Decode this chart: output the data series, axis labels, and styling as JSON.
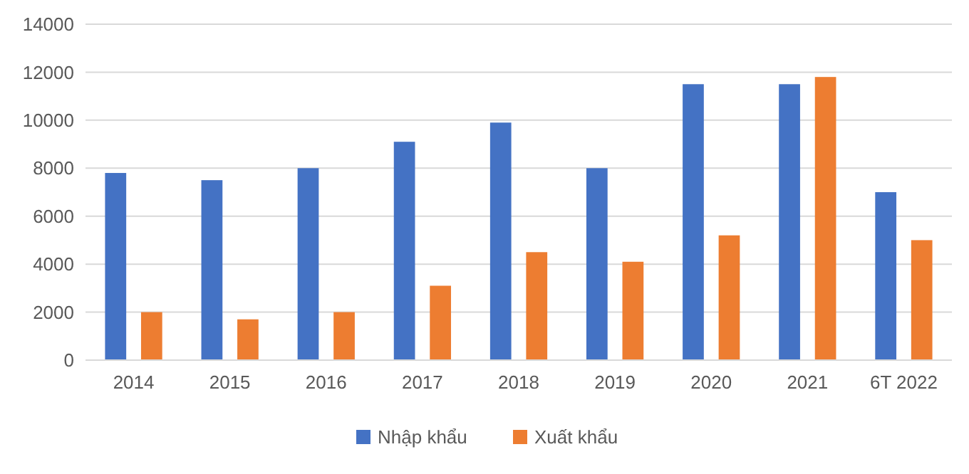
{
  "chart_data": {
    "type": "bar",
    "categories": [
      "2014",
      "2015",
      "2016",
      "2017",
      "2018",
      "2019",
      "2020",
      "2021",
      "6T 2022"
    ],
    "series": [
      {
        "name": "Nhập khẩu",
        "color": "#4472c4",
        "values": [
          7800,
          7500,
          8000,
          9100,
          9900,
          8000,
          11500,
          11500,
          7000
        ]
      },
      {
        "name": "Xuất khẩu",
        "color": "#ed7d31",
        "values": [
          2000,
          1700,
          2000,
          3100,
          4500,
          4100,
          5200,
          11800,
          5000
        ]
      }
    ],
    "ylim": [
      0,
      14000
    ],
    "yticks": [
      0,
      2000,
      4000,
      6000,
      8000,
      10000,
      12000,
      14000
    ],
    "grid": "y",
    "legend": "bottom"
  }
}
